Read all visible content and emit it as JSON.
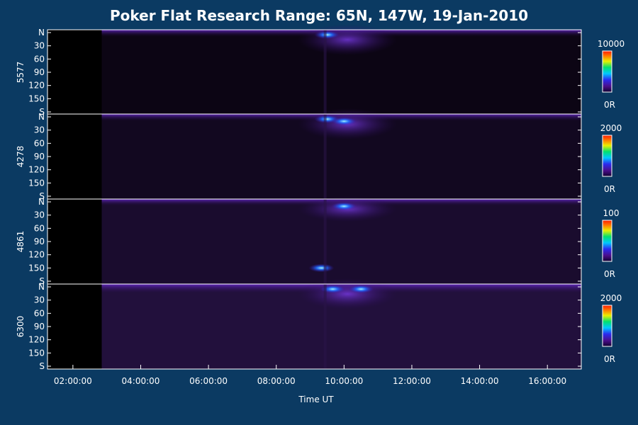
{
  "title": "Poker Flat Research Range: 65N, 147W, 19-Jan-2010",
  "chart_data": {
    "type": "heatmap",
    "title": "Poker Flat Research Range: 65N, 147W, 19-Jan-2010",
    "xlabel": "Time UT",
    "x_ticks": [
      "02:00:00",
      "04:00:00",
      "06:00:00",
      "08:00:00",
      "10:00:00",
      "12:00:00",
      "14:00:00",
      "16:00:00"
    ],
    "y_ticks": [
      "N",
      "30",
      "60",
      "90",
      "120",
      "150",
      "S"
    ],
    "panels": [
      {
        "ylabel": "5577",
        "colorbar": {
          "max_label": "10000",
          "min_label": "0R"
        },
        "bright_events": [
          {
            "time": "09:30",
            "angle": 5
          }
        ]
      },
      {
        "ylabel": "4278",
        "colorbar": {
          "max_label": "2000",
          "min_label": "0R"
        },
        "bright_events": [
          {
            "time": "09:30",
            "angle": 5
          },
          {
            "time": "10:00",
            "angle": 10
          }
        ]
      },
      {
        "ylabel": "4861",
        "colorbar": {
          "max_label": "100",
          "min_label": "0R"
        },
        "bright_events": [
          {
            "time": "10:00",
            "angle": 10
          },
          {
            "time": "09:20",
            "angle": 150
          }
        ]
      },
      {
        "ylabel": "6300",
        "colorbar": {
          "max_label": "2000",
          "min_label": "0R"
        },
        "bright_events": [
          {
            "time": "09:40",
            "angle": 5
          },
          {
            "time": "10:30",
            "angle": 5
          }
        ]
      }
    ],
    "colormap": [
      "#100030",
      "#4b0e8a",
      "#2b2bf0",
      "#00c8ff",
      "#00e070",
      "#e8f000",
      "#ff7a00",
      "#ff1a00"
    ]
  }
}
